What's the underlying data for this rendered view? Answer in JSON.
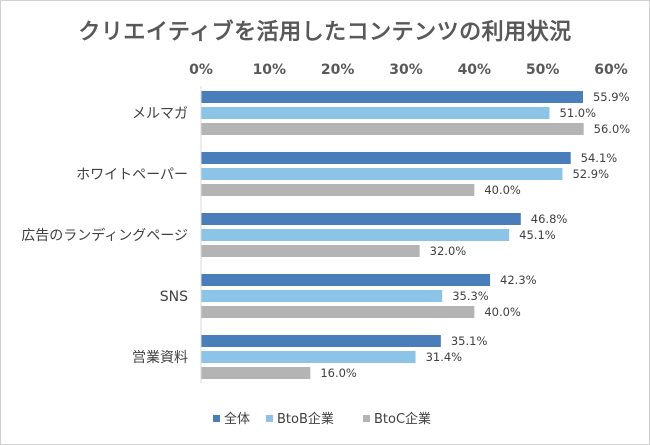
{
  "chart_data": {
    "type": "bar",
    "orientation": "horizontal",
    "title": "クリエイティブを活用したコンテンツの利用状況",
    "xlim": [
      0,
      60
    ],
    "x_ticks": [
      "0%",
      "10%",
      "20%",
      "30%",
      "40%",
      "50%",
      "60%"
    ],
    "grid": false,
    "legend_position": "bottom",
    "categories": [
      "メルマガ",
      "ホワイトペーパー",
      "広告のランディングページ",
      "SNS",
      "営業資料"
    ],
    "series": [
      {
        "name": "全体",
        "color": "#4a7ebb",
        "values": [
          55.9,
          54.1,
          46.8,
          42.3,
          35.1
        ],
        "labels": [
          "55.9%",
          "54.1%",
          "46.8%",
          "42.3%",
          "35.1%"
        ]
      },
      {
        "name": "BtoB企業",
        "color": "#8cc4e8",
        "values": [
          51.0,
          52.9,
          45.1,
          35.3,
          31.4
        ],
        "labels": [
          "51.0%",
          "52.9%",
          "45.1%",
          "35.3%",
          "31.4%"
        ]
      },
      {
        "name": "BtoC企業",
        "color": "#b4b4b4",
        "values": [
          56.0,
          40.0,
          32.0,
          40.0,
          16.0
        ],
        "labels": [
          "56.0%",
          "40.0%",
          "32.0%",
          "40.0%",
          "16.0%"
        ]
      }
    ]
  }
}
